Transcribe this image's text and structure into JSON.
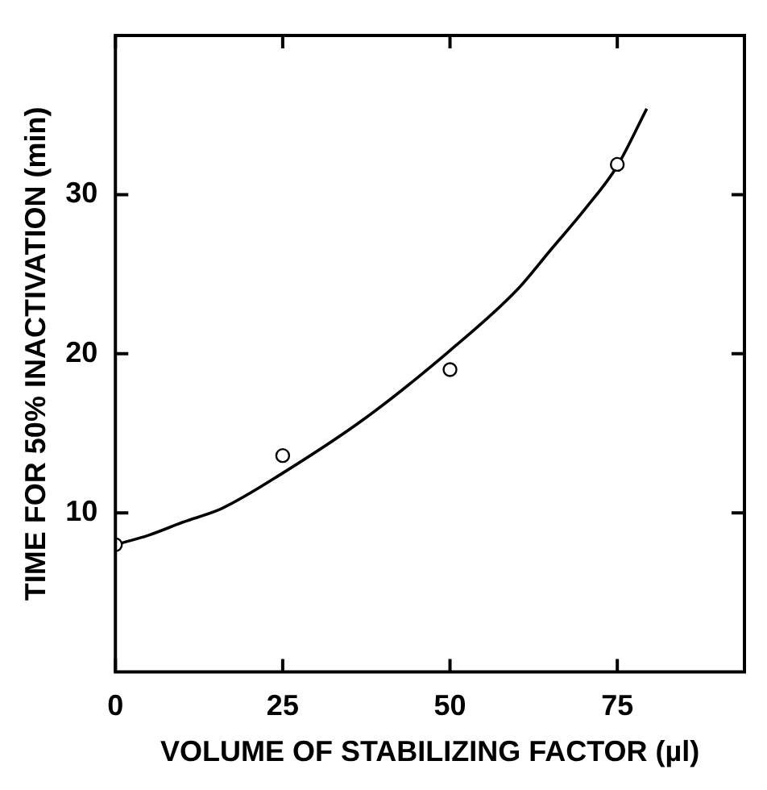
{
  "chart_data": {
    "type": "scatter",
    "xlabel": "VOLUME OF STABILIZING FACTOR (µl)",
    "ylabel": "TIME FOR 50% INACTIVATION (min)",
    "xlim": [
      0,
      94
    ],
    "xticks": [
      0,
      25,
      50,
      75
    ],
    "ylim": [
      0,
      40
    ],
    "yticks": [
      10,
      20,
      30
    ],
    "series": [
      {
        "type": "scatter",
        "color": "#000000",
        "marker": "circle",
        "x": [
          0,
          25,
          50,
          75
        ],
        "values": [
          8,
          13.6,
          19,
          31.9
        ]
      },
      {
        "type": "line",
        "color": "#000000",
        "marker": "none",
        "x": [
          0,
          5,
          10,
          16,
          25,
          37.5,
          50,
          60,
          65,
          70,
          75,
          79.4
        ],
        "values": [
          8,
          8.6,
          9.4,
          10.3,
          12.5,
          16,
          20.2,
          24,
          26.5,
          29,
          31.8,
          35.4
        ]
      }
    ]
  }
}
